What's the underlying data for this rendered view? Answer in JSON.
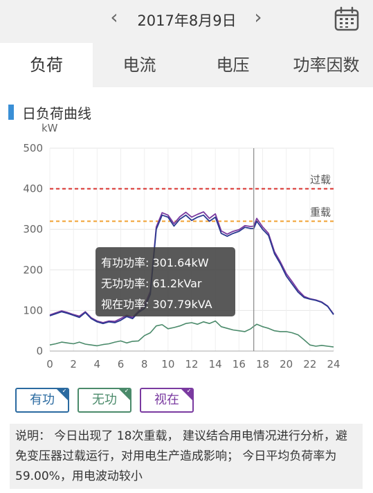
{
  "header": {
    "date": "2017年8月9日",
    "prev_icon": "‹",
    "next_icon": "›"
  },
  "tabs": [
    {
      "label": "负荷",
      "active": true
    },
    {
      "label": "电流",
      "active": false
    },
    {
      "label": "电压",
      "active": false
    },
    {
      "label": "功率因数",
      "active": false
    }
  ],
  "section": {
    "title": "日负荷曲线",
    "unit": "kW"
  },
  "legend": {
    "active": "有功",
    "reactive": "无功",
    "apparent": "视在"
  },
  "note": {
    "text": "说明： 今日出现了 18次重载， 建议结合用电情况进行分析，避免变压器过载运行，对用电生产造成影响； 今日平均负荷率为59.00%，用电波动较小"
  },
  "colors": {
    "active": "#2a3990",
    "reactive": "#4a8a6a",
    "apparent": "#7a3aa0",
    "overload": "#d9302c",
    "heavy": "#f0a030",
    "accent": "#3a8fd6"
  },
  "chart_data": {
    "type": "line",
    "xlim": [
      0,
      24
    ],
    "ylim": [
      0,
      500
    ],
    "x_ticks": [
      0,
      2,
      4,
      6,
      8,
      10,
      12,
      14,
      16,
      18,
      20,
      22,
      24
    ],
    "y_ticks": [
      0,
      100,
      200,
      300,
      400,
      500
    ],
    "ylabel": "kW",
    "reference_lines": [
      {
        "label": "过载",
        "value": 400
      },
      {
        "label": "重载",
        "value": 320
      }
    ],
    "cursor_x": 17.25,
    "tooltip": [
      "有功功率: 301.64kW",
      "无功功率: 61.2kVar",
      "视在功率: 307.79kVA"
    ],
    "series": [
      {
        "name": "有功",
        "x": [
          0,
          0.5,
          1,
          1.5,
          2,
          2.5,
          3,
          3.5,
          4,
          4.5,
          5,
          5.5,
          6,
          6.5,
          7,
          7.5,
          8,
          8.5,
          9,
          9.5,
          10,
          10.5,
          11,
          11.5,
          12,
          12.5,
          13,
          13.5,
          14,
          14.5,
          15,
          15.5,
          16,
          16.5,
          17,
          17.25,
          17.5,
          18,
          18.5,
          19,
          19.5,
          20,
          20.5,
          21,
          21.5,
          22,
          22.5,
          23,
          23.5,
          24
        ],
        "values": [
          87,
          92,
          97,
          93,
          88,
          83,
          95,
          80,
          72,
          68,
          72,
          70,
          76,
          85,
          80,
          95,
          105,
          140,
          300,
          335,
          330,
          308,
          325,
          335,
          322,
          330,
          335,
          320,
          330,
          290,
          283,
          290,
          295,
          305,
          302,
          302,
          320,
          300,
          285,
          240,
          215,
          185,
          165,
          145,
          132,
          128,
          125,
          120,
          110,
          90
        ]
      },
      {
        "name": "无功",
        "x": [
          0,
          0.5,
          1,
          1.5,
          2,
          2.5,
          3,
          3.5,
          4,
          4.5,
          5,
          5.5,
          6,
          6.5,
          7,
          7.5,
          8,
          8.5,
          9,
          9.5,
          10,
          10.5,
          11,
          11.5,
          12,
          12.5,
          13,
          13.5,
          14,
          14.5,
          15,
          15.5,
          16,
          16.5,
          17,
          17.25,
          17.5,
          18,
          18.5,
          19,
          19.5,
          20,
          20.5,
          21,
          21.5,
          22,
          22.5,
          23,
          23.5,
          24
        ],
        "values": [
          15,
          18,
          22,
          20,
          18,
          22,
          17,
          15,
          13,
          16,
          18,
          22,
          25,
          20,
          24,
          25,
          38,
          45,
          62,
          65,
          55,
          58,
          62,
          68,
          70,
          66,
          72,
          68,
          74,
          60,
          56,
          52,
          50,
          48,
          55,
          61,
          66,
          60,
          56,
          50,
          48,
          48,
          45,
          40,
          28,
          15,
          12,
          14,
          12,
          10
        ]
      },
      {
        "name": "视在",
        "x": [
          0,
          0.5,
          1,
          1.5,
          2,
          2.5,
          3,
          3.5,
          4,
          4.5,
          5,
          5.5,
          6,
          6.5,
          7,
          7.5,
          8,
          8.5,
          9,
          9.5,
          10,
          10.5,
          11,
          11.5,
          12,
          12.5,
          13,
          13.5,
          14,
          14.5,
          15,
          15.5,
          16,
          16.5,
          17,
          17.25,
          17.5,
          18,
          18.5,
          19,
          19.5,
          20,
          20.5,
          21,
          21.5,
          22,
          22.5,
          23,
          23.5,
          24
        ],
        "values": [
          89,
          94,
          99,
          95,
          90,
          86,
          97,
          82,
          74,
          70,
          74,
          73,
          80,
          88,
          83,
          98,
          112,
          147,
          306,
          341,
          335,
          314,
          331,
          342,
          330,
          337,
          343,
          327,
          338,
          296,
          288,
          295,
          299,
          309,
          307,
          308,
          327,
          306,
          290,
          245,
          220,
          191,
          171,
          150,
          135,
          129,
          126,
          121,
          111,
          91
        ]
      }
    ]
  }
}
